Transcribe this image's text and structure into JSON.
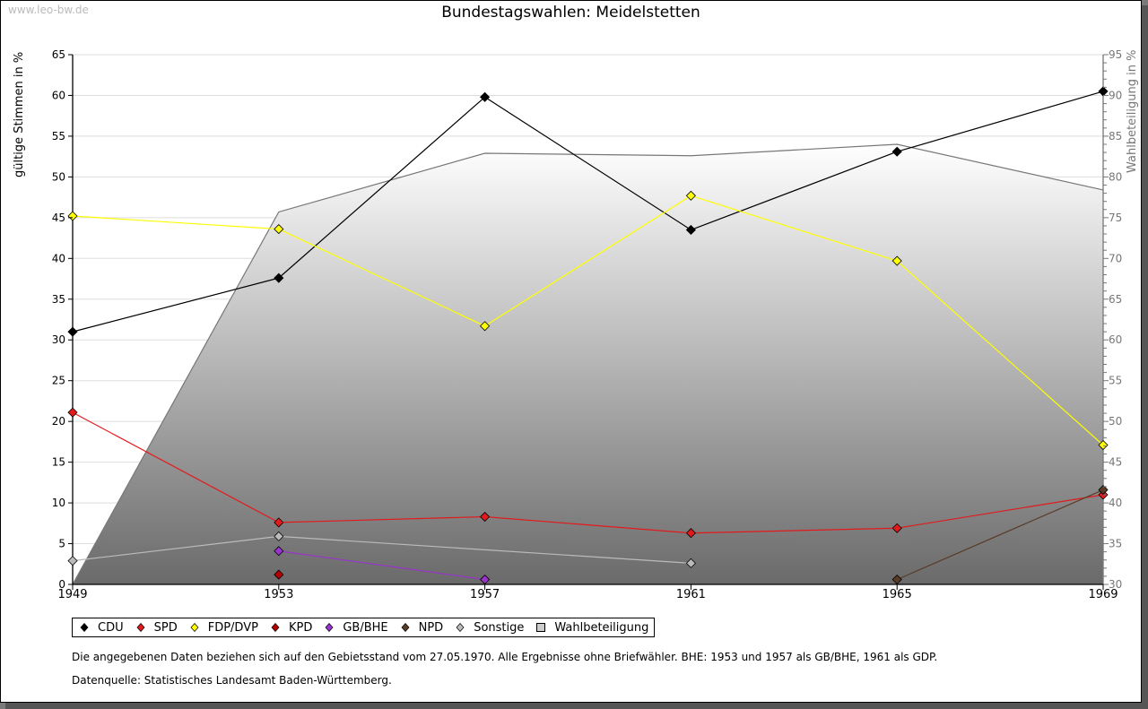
{
  "watermark": "www.leo-bw.de",
  "chart_data": {
    "type": "line",
    "title": "Bundestagswahlen: Meidelstetten",
    "ylabel": "gültige Stimmen in %",
    "y2label": "Wahlbeteiligung in %",
    "xlabel": "",
    "x": [
      1949,
      1953,
      1957,
      1961,
      1965,
      1969
    ],
    "x_tick_labels": [
      "1949",
      "1953",
      "1957",
      "1961",
      "1965",
      "1969"
    ],
    "ylim": [
      0,
      65
    ],
    "y_ticks": [
      0,
      5,
      10,
      15,
      20,
      25,
      30,
      35,
      40,
      45,
      50,
      55,
      60,
      65
    ],
    "y2lim": [
      30,
      95
    ],
    "y2_ticks": [
      30,
      35,
      40,
      45,
      50,
      55,
      60,
      65,
      70,
      75,
      80,
      85,
      90,
      95
    ],
    "grid": true,
    "legend_position": "bottom-left",
    "series": [
      {
        "name": "CDU",
        "color": "#000000",
        "values": [
          31.0,
          37.6,
          59.8,
          43.5,
          53.1,
          60.5
        ]
      },
      {
        "name": "SPD",
        "color": "#e31a1c",
        "values": [
          21.1,
          7.6,
          8.3,
          6.3,
          6.9,
          11.0
        ]
      },
      {
        "name": "FDP/DVP",
        "color": "#ffff00",
        "values": [
          45.2,
          43.6,
          31.7,
          47.7,
          39.7,
          17.1
        ]
      },
      {
        "name": "KPD",
        "color": "#b40000",
        "values": [
          null,
          1.2,
          null,
          null,
          null,
          null
        ]
      },
      {
        "name": "GB/BHE",
        "color": "#9933cc",
        "values": [
          null,
          4.1,
          0.6,
          null,
          null,
          null
        ]
      },
      {
        "name": "NPD",
        "color": "#5a3c28",
        "values": [
          null,
          null,
          null,
          null,
          0.6,
          11.6
        ]
      },
      {
        "name": "Sonstige",
        "color": "#bbbbbb",
        "values": [
          2.9,
          5.9,
          null,
          2.6,
          null,
          null
        ]
      }
    ],
    "area_series": {
      "name": "Wahlbeteiligung",
      "axis": "right",
      "color": "#888888",
      "values": [
        30.0,
        75.7,
        82.9,
        82.6,
        84.0,
        78.4
      ]
    }
  },
  "notes": {
    "line1": "Die angegebenen Daten beziehen sich auf den Gebietsstand vom 27.05.1970. Alle Ergebnisse ohne Briefwähler. BHE: 1953 und 1957 als GB/BHE, 1961 als GDP.",
    "line2": "Datenquelle: Statistisches Landesamt Baden-Württemberg."
  }
}
